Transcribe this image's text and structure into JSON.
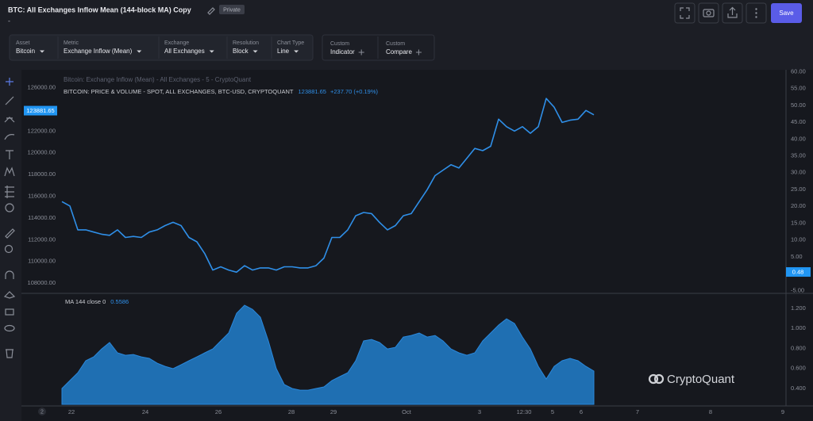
{
  "header": {
    "title": "BTC: All Exchanges Inflow Mean (144-block MA) Copy",
    "badge": "Private",
    "subtitle": "-",
    "save": "Save"
  },
  "toolbar": {
    "selectors": [
      {
        "label": "Asset",
        "value": "Bitcoin"
      },
      {
        "label": "Metric",
        "value": "Exchange Inflow (Mean)"
      },
      {
        "label": "Exchange",
        "value": "All Exchanges"
      },
      {
        "label": "Resolution",
        "value": "Block"
      },
      {
        "label": "Chart Type",
        "value": "Line"
      }
    ],
    "custom": [
      {
        "label": "Custom",
        "value": "Indicator"
      },
      {
        "label": "Custom",
        "value": "Compare"
      }
    ]
  },
  "watermark": "CryptoQuant",
  "x_axis_corner": "2",
  "chart_data": [
    {
      "type": "line",
      "title": "Bitcoin: Exchange Inflow (Mean) - All Exchanges - 5 - CryptoQuant",
      "xlim": [
        -0.3,
        91.2
      ],
      "ylim": [
        107200,
        127500
      ],
      "yticks": [
        {
          "value": 108000,
          "label": "108000.00"
        },
        {
          "value": 110000,
          "label": "110000.00"
        },
        {
          "value": 112000,
          "label": "112000.00"
        },
        {
          "value": 114000,
          "label": "114000.00"
        },
        {
          "value": 116000,
          "label": "116000.00"
        },
        {
          "value": 118000,
          "label": "118000.00"
        },
        {
          "value": 120000,
          "label": "120000.00"
        },
        {
          "value": 122000,
          "label": "122000.00"
        },
        {
          "value": 126000,
          "label": "126000.00"
        }
      ],
      "y2lim": [
        -5.4,
        60.1
      ],
      "y2ticks": [
        {
          "value": -5,
          "label": "-5.00"
        },
        {
          "value": 5,
          "label": "5.00"
        },
        {
          "value": 10,
          "label": "10.00"
        },
        {
          "value": 15,
          "label": "15.00"
        },
        {
          "value": 20,
          "label": "20.00"
        },
        {
          "value": 25,
          "label": "25.00"
        },
        {
          "value": 30,
          "label": "30.00"
        },
        {
          "value": 35,
          "label": "35.00"
        },
        {
          "value": 40,
          "label": "40.00"
        },
        {
          "value": 45,
          "label": "45.00"
        },
        {
          "value": 50,
          "label": "50.00"
        },
        {
          "value": 55,
          "label": "55.00"
        },
        {
          "value": 60,
          "label": "60.00"
        }
      ],
      "y2_last_value": 0.48,
      "series": [
        {
          "name": "BITCOIN: PRICE & VOLUME - SPOT, ALL EXCHANGES, BTC-USD, CRYPTOQUANT",
          "color": "#2f8fe8",
          "last_value": 123881.65,
          "change": "+237.70 (+0.19%)",
          "values": [
            115500,
            115100,
            112900,
            112900,
            112700,
            112500,
            112400,
            112900,
            112200,
            112300,
            112200,
            112700,
            112900,
            113300,
            113600,
            113300,
            112200,
            111800,
            110700,
            109200,
            109500,
            109200,
            109000,
            109600,
            109200,
            109400,
            109400,
            109200,
            109500,
            109500,
            109400,
            109400,
            109600,
            110300,
            112200,
            112200,
            112900,
            114200,
            114500,
            114400,
            113600,
            112900,
            113300,
            114200,
            114400,
            115500,
            116600,
            117900,
            118400,
            118900,
            118600,
            119500,
            120400,
            120200,
            120600,
            123100,
            122400,
            122000,
            122400,
            121800,
            122400,
            125000,
            124200,
            122800,
            123000,
            123100,
            123900,
            123500
          ]
        }
      ]
    },
    {
      "type": "area",
      "title": "MA 144 close 0",
      "last_value": 0.5586,
      "xlim": [
        -0.3,
        91.2
      ],
      "ylim": [
        0.242,
        1.334
      ],
      "yticks": [
        {
          "value": 0.4,
          "label": "0.400"
        },
        {
          "value": 0.6,
          "label": "0.600"
        },
        {
          "value": 0.8,
          "label": "0.800"
        },
        {
          "value": 1.0,
          "label": "1.000"
        },
        {
          "value": 1.2,
          "label": "1.200"
        }
      ],
      "xticks": [
        {
          "value": 1.2,
          "label": "22"
        },
        {
          "value": 10.5,
          "label": "24"
        },
        {
          "value": 19.7,
          "label": "26"
        },
        {
          "value": 28.9,
          "label": "28"
        },
        {
          "value": 34.2,
          "label": "29"
        },
        {
          "value": 43.4,
          "label": "Oct"
        },
        {
          "value": 52.6,
          "label": "3"
        },
        {
          "value": 58.2,
          "label": "12:30"
        },
        {
          "value": 61.8,
          "label": "5"
        },
        {
          "value": 65.4,
          "label": "6"
        },
        {
          "value": 72.5,
          "label": "7"
        },
        {
          "value": 81.7,
          "label": "8"
        },
        {
          "value": 90.8,
          "label": "9"
        }
      ],
      "series": [
        {
          "color": "#1f6fb2",
          "values": [
            0.4,
            0.479,
            0.558,
            0.677,
            0.716,
            0.795,
            0.859,
            0.756,
            0.732,
            0.74,
            0.716,
            0.701,
            0.653,
            0.621,
            0.598,
            0.637,
            0.677,
            0.716,
            0.756,
            0.795,
            0.875,
            0.954,
            1.151,
            1.231,
            1.191,
            1.112,
            0.875,
            0.598,
            0.44,
            0.4,
            0.384,
            0.384,
            0.4,
            0.416,
            0.479,
            0.519,
            0.558,
            0.677,
            0.875,
            0.89,
            0.859,
            0.795,
            0.811,
            0.914,
            0.93,
            0.954,
            0.914,
            0.93,
            0.875,
            0.795,
            0.756,
            0.732,
            0.756,
            0.875,
            0.954,
            1.033,
            1.096,
            1.049,
            0.914,
            0.795,
            0.621,
            0.495,
            0.621,
            0.677,
            0.701,
            0.677,
            0.621,
            0.574
          ]
        }
      ]
    }
  ]
}
